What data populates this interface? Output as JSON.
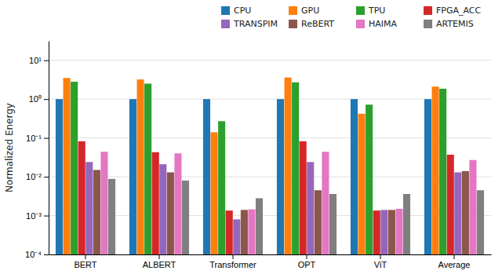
{
  "chart_data": {
    "type": "bar",
    "categories": [
      "BERT",
      "ALBERT",
      "Transformer",
      "OPT",
      "ViT",
      "Average"
    ],
    "series": [
      {
        "name": "CPU",
        "values": [
          1.0,
          1.0,
          1.0,
          1.0,
          1.0,
          1.0
        ]
      },
      {
        "name": "GPU",
        "values": [
          3.5,
          3.2,
          0.14,
          3.6,
          0.42,
          2.1
        ]
      },
      {
        "name": "TPU",
        "values": [
          2.8,
          2.5,
          0.27,
          2.7,
          0.72,
          1.85
        ]
      },
      {
        "name": "FPGA_ACC",
        "values": [
          0.082,
          0.043,
          0.00135,
          0.082,
          0.00135,
          0.037
        ]
      },
      {
        "name": "TRANSPIM",
        "values": [
          0.024,
          0.021,
          0.0008,
          0.024,
          0.0014,
          0.013
        ]
      },
      {
        "name": "ReBERT",
        "values": [
          0.015,
          0.013,
          0.0014,
          0.0045,
          0.0014,
          0.014
        ]
      },
      {
        "name": "HAIMA",
        "values": [
          0.044,
          0.04,
          0.00145,
          0.044,
          0.0015,
          0.027
        ]
      },
      {
        "name": "ARTEMIS",
        "values": [
          0.0088,
          0.008,
          0.0028,
          0.0036,
          0.0036,
          0.0045
        ]
      }
    ],
    "y_label": "Normalized Energy",
    "log": "y",
    "ylim": [
      0.0001,
      31.622776601683793
    ],
    "yticks": [
      {
        "value": 0.0001,
        "label": "10⁻⁴"
      },
      {
        "value": 0.001,
        "label": "10⁻³"
      },
      {
        "value": 0.01,
        "label": "10⁻²"
      },
      {
        "value": 0.1,
        "label": "10⁻¹"
      },
      {
        "value": 1,
        "label": "10⁰"
      },
      {
        "value": 10,
        "label": "10¹"
      }
    ],
    "grid": true,
    "legend": "upper right"
  }
}
